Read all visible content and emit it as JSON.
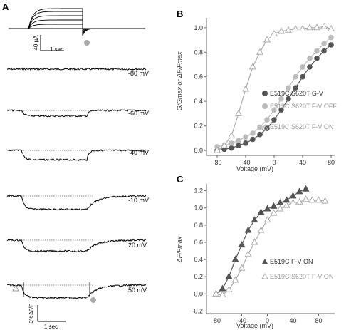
{
  "panels": {
    "A": {
      "label": "A",
      "current_scale": "40 µA",
      "current_time": "1 sec",
      "fluor_scale": "3% ΔF/F",
      "fluor_time": "1 sec",
      "trace_voltages": [
        "-80 mV",
        "-60 mV",
        "-40 mV",
        "-10 mV",
        "20 mV",
        "50 mV"
      ],
      "trace_amplitudes": [
        0,
        0.35,
        0.6,
        0.85,
        0.7,
        0.8
      ]
    },
    "B": {
      "label": "B"
    },
    "C": {
      "label": "C"
    }
  },
  "chart_data": [
    {
      "panel": "B",
      "type": "scatter",
      "xlabel": "Voltage (mV)",
      "ylabel": "G/Gmax or ΔF/Fmax",
      "xlim": [
        -95,
        85
      ],
      "ylim": [
        -0.04,
        1.08
      ],
      "xticks": [
        -80,
        -40,
        0,
        40,
        80
      ],
      "yticks": [
        0.0,
        0.2,
        0.4,
        0.6,
        0.8,
        1.0
      ],
      "legend_position": "right",
      "series": [
        {
          "name": "E519C:S620T G-V",
          "marker": "circle",
          "color": "#555555",
          "x": [
            -80,
            -70,
            -60,
            -50,
            -40,
            -30,
            -20,
            -10,
            0,
            10,
            20,
            30,
            40,
            50,
            60,
            70,
            80
          ],
          "y": [
            0.0,
            0.01,
            0.02,
            0.04,
            0.06,
            0.09,
            0.13,
            0.18,
            0.25,
            0.33,
            0.42,
            0.51,
            0.6,
            0.68,
            0.75,
            0.81,
            0.86
          ],
          "fit": true
        },
        {
          "name": "E519C:S620T F-V OFF",
          "marker": "circle",
          "color": "#bbbbbb",
          "x": [
            -80,
            -70,
            -60,
            -50,
            -40,
            -30,
            -20,
            -10,
            0,
            10,
            20,
            30,
            40,
            50,
            60,
            70,
            80
          ],
          "y": [
            0.03,
            0.04,
            0.06,
            0.08,
            0.11,
            0.14,
            0.19,
            0.25,
            0.33,
            0.42,
            0.51,
            0.6,
            0.68,
            0.75,
            0.81,
            0.87,
            0.92
          ],
          "fit": true
        },
        {
          "name": "E519C:S620T F-V ON",
          "marker": "triangle-open",
          "color": "#aaaaaa",
          "x": [
            -80,
            -70,
            -60,
            -50,
            -40,
            -30,
            -20,
            -10,
            0,
            10,
            20,
            30,
            40,
            50,
            60,
            70,
            80
          ],
          "y": [
            0.0,
            0.04,
            0.12,
            0.3,
            0.5,
            0.68,
            0.8,
            0.9,
            0.95,
            0.97,
            0.98,
            0.99,
            0.99,
            1.0,
            1.0,
            1.01,
            0.99
          ],
          "fit": true
        }
      ]
    },
    {
      "panel": "C",
      "type": "scatter",
      "xlabel": "Voltage (mV)",
      "ylabel": "ΔF/Fmax",
      "xlim": [
        -95,
        105
      ],
      "ylim": [
        -0.23,
        1.28
      ],
      "xticks": [
        -80,
        -40,
        0,
        40,
        80
      ],
      "yticks": [
        -0.2,
        0.0,
        0.2,
        0.4,
        0.6,
        0.8,
        1.0,
        1.2
      ],
      "legend_position": "bottom-right",
      "series": [
        {
          "name": "E519C F-V ON",
          "marker": "triangle-filled",
          "color": "#555555",
          "x": [
            -80,
            -70,
            -60,
            -50,
            -40,
            -30,
            -20,
            -10,
            0,
            10,
            20,
            30,
            40,
            50,
            60
          ],
          "y": [
            0.0,
            0.06,
            0.2,
            0.4,
            0.57,
            0.74,
            0.86,
            0.95,
            0.99,
            1.02,
            1.06,
            1.09,
            1.14,
            1.19,
            1.22
          ],
          "fit": true
        },
        {
          "name": "E519C:S620T F-V ON",
          "marker": "triangle-open",
          "color": "#aaaaaa",
          "x": [
            -80,
            -70,
            -60,
            -50,
            -40,
            -30,
            -20,
            -10,
            0,
            10,
            20,
            30,
            40,
            50,
            60,
            70,
            80,
            90
          ],
          "y": [
            0.0,
            -0.01,
            0.05,
            0.16,
            0.3,
            0.46,
            0.6,
            0.74,
            0.86,
            0.94,
            0.99,
            1.03,
            1.06,
            1.07,
            1.1,
            1.09,
            1.09,
            1.08
          ],
          "fit": true
        }
      ]
    }
  ]
}
